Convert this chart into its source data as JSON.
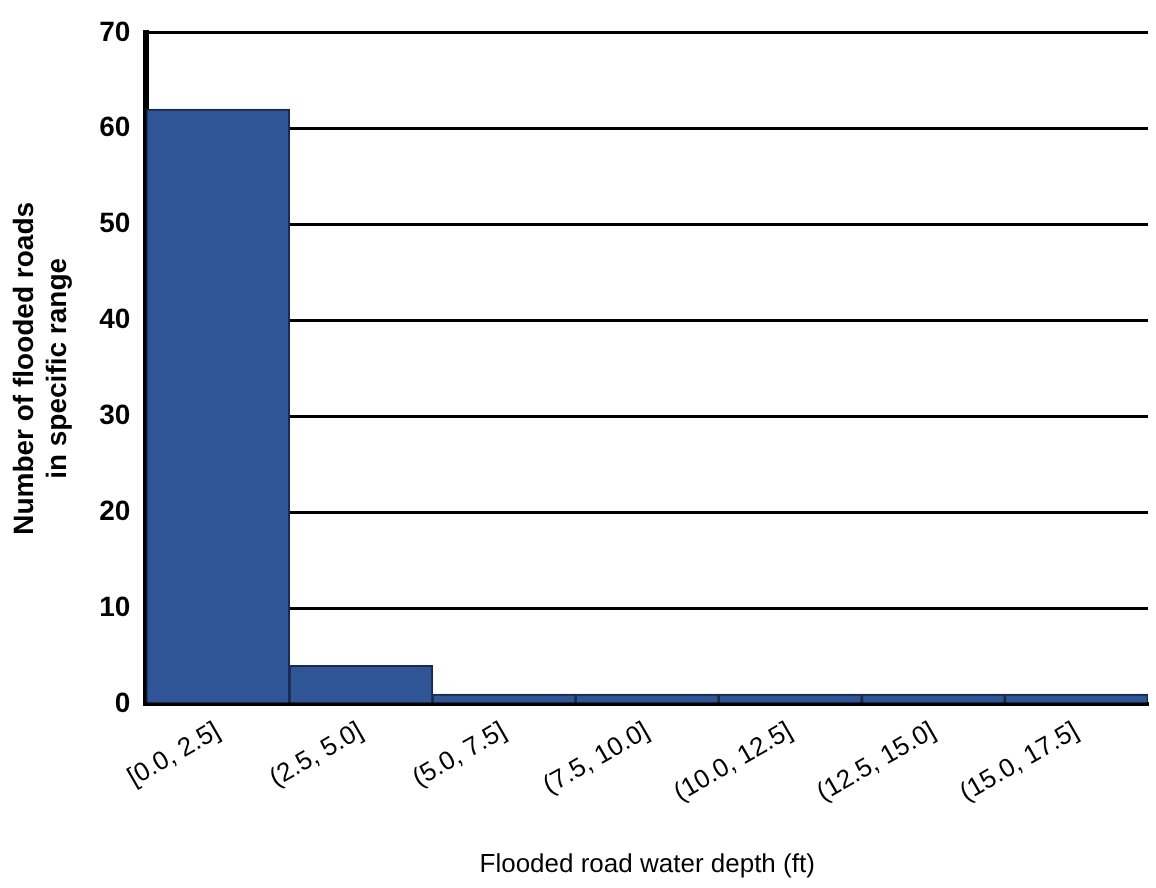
{
  "chart_data": {
    "type": "bar",
    "xlabel": "Flooded road water depth (ft)",
    "ylabel": "Number of flooded roads in specific range",
    "categories": [
      "[0.0, 2.5]",
      "(2.5, 5.0]",
      "(5.0, 7.5]",
      "(7.5, 10.0]",
      "(10.0, 12.5]",
      "(12.5, 15.0]",
      "(15.0, 17.5]"
    ],
    "values": [
      62,
      4,
      1,
      1,
      1,
      1,
      1
    ],
    "color": "#2f5597",
    "ylim": [
      0,
      70
    ],
    "yticks": [
      0,
      10,
      20,
      30,
      40,
      50,
      60,
      70
    ],
    "grid": "y"
  }
}
